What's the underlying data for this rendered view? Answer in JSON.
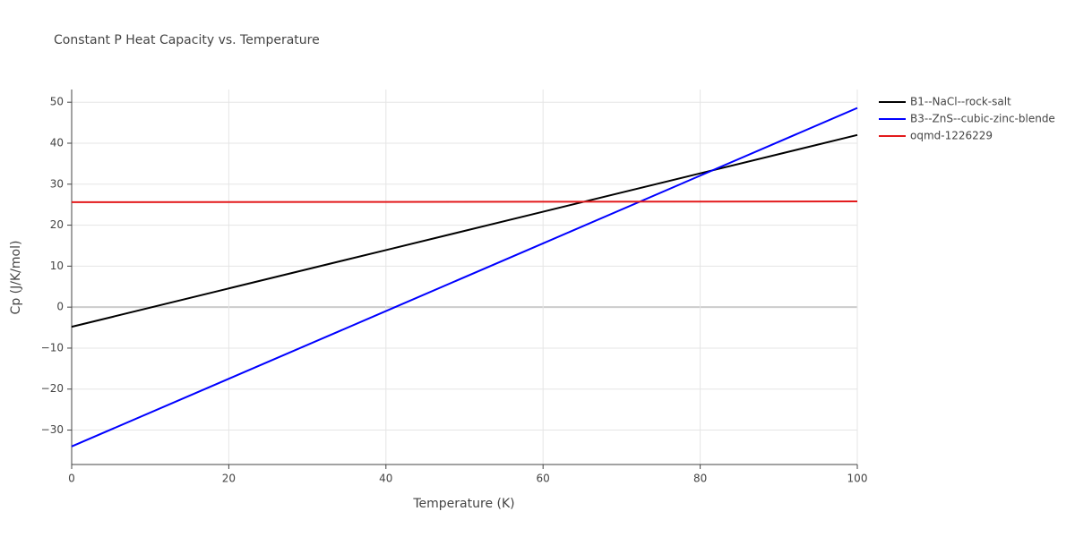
{
  "chart_data": {
    "type": "line",
    "title": "Constant P Heat Capacity vs. Temperature",
    "x_label": "Temperature (K)",
    "y_label": "Cp (J/K/mol)",
    "x": [
      0,
      20,
      40,
      60,
      80,
      100
    ],
    "series": [
      {
        "name": "B1--NaCl--rock-salt",
        "color": "#000000",
        "values": [
          -4.8,
          4.56,
          13.92,
          23.28,
          32.64,
          42.0
        ]
      },
      {
        "name": "B3--ZnS--cubic-zinc-blende",
        "color": "#0000ff",
        "values": [
          -34,
          -17.48,
          -0.96,
          15.56,
          32.08,
          48.6
        ]
      },
      {
        "name": "oqmd-1226229",
        "color": "#e31a1c",
        "values": [
          25.6,
          25.64,
          25.68,
          25.72,
          25.76,
          25.8
        ]
      }
    ],
    "xlim": [
      0,
      100
    ],
    "ylim": [
      -38.4,
      53.1
    ],
    "xticks": [
      0,
      20,
      40,
      60,
      80,
      100
    ],
    "yticks": [
      {
        "value": -30,
        "label": "−30"
      },
      {
        "value": -20,
        "label": "−20"
      },
      {
        "value": -10,
        "label": "−10"
      },
      0,
      10,
      20,
      30,
      40,
      50
    ],
    "grid": true,
    "legend": "right"
  }
}
